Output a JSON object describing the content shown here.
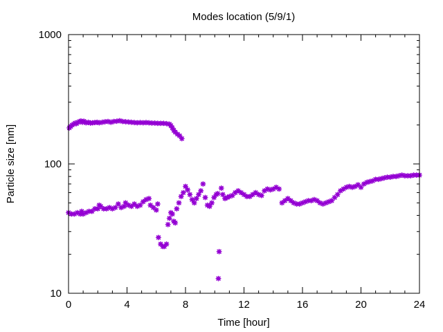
{
  "chart_data": {
    "type": "scatter",
    "title": "Modes location (5/9/1)",
    "xlabel": "Time [hour]",
    "ylabel": "Particle size [nm]",
    "xlim": [
      0,
      24
    ],
    "ylim": [
      10,
      1000
    ],
    "yscale": "log",
    "xticks": [
      0,
      4,
      8,
      12,
      16,
      20,
      24
    ],
    "xtick_labels": [
      "0",
      "4",
      "8",
      "12",
      "16",
      "20",
      "24"
    ],
    "yticks": [
      10,
      100,
      1000
    ],
    "ytick_labels": [
      "10",
      "100",
      "1000"
    ],
    "grid": false,
    "legend": "none",
    "marker_color": "#9400d3",
    "series": [
      {
        "points": [
          [
            0.05,
            190
          ],
          [
            0.15,
            195
          ],
          [
            0.25,
            200
          ],
          [
            0.35,
            203
          ],
          [
            0.45,
            207
          ],
          [
            0.55,
            205
          ],
          [
            0.65,
            210
          ],
          [
            0.75,
            213
          ],
          [
            0.85,
            215
          ],
          [
            0.95,
            210
          ],
          [
            1.05,
            214
          ],
          [
            1.2,
            208
          ],
          [
            1.35,
            210
          ],
          [
            1.5,
            207
          ],
          [
            1.65,
            208
          ],
          [
            1.8,
            209
          ],
          [
            1.95,
            210
          ],
          [
            2.1,
            208
          ],
          [
            2.3,
            210
          ],
          [
            2.5,
            212
          ],
          [
            2.7,
            213
          ],
          [
            2.9,
            210
          ],
          [
            3.1,
            213
          ],
          [
            3.3,
            214
          ],
          [
            3.5,
            216
          ],
          [
            3.7,
            213
          ],
          [
            3.9,
            212
          ],
          [
            4.1,
            211
          ],
          [
            4.3,
            210
          ],
          [
            4.5,
            209
          ],
          [
            4.7,
            208
          ],
          [
            4.9,
            209
          ],
          [
            5.1,
            208
          ],
          [
            5.3,
            209
          ],
          [
            5.5,
            208
          ],
          [
            5.7,
            207
          ],
          [
            5.9,
            207
          ],
          [
            6.1,
            206
          ],
          [
            6.3,
            206
          ],
          [
            6.5,
            206
          ],
          [
            6.7,
            205
          ],
          [
            6.9,
            203
          ],
          [
            7.0,
            198
          ],
          [
            7.1,
            190
          ],
          [
            7.2,
            182
          ],
          [
            7.3,
            176
          ],
          [
            7.45,
            170
          ],
          [
            7.6,
            165
          ],
          [
            7.75,
            157
          ]
        ]
      },
      {
        "points": [
          [
            0.0,
            42
          ],
          [
            0.2,
            41
          ],
          [
            0.4,
            41
          ],
          [
            0.6,
            42
          ],
          [
            0.8,
            41
          ],
          [
            0.9,
            43
          ],
          [
            1.0,
            41
          ],
          [
            1.2,
            42
          ],
          [
            1.4,
            43
          ],
          [
            1.6,
            43
          ],
          [
            1.8,
            45
          ],
          [
            2.0,
            45
          ],
          [
            2.1,
            48
          ],
          [
            2.2,
            47
          ],
          [
            2.4,
            45
          ],
          [
            2.6,
            45
          ],
          [
            2.8,
            46
          ],
          [
            3.0,
            45
          ],
          [
            3.2,
            46
          ],
          [
            3.4,
            49
          ],
          [
            3.6,
            46
          ],
          [
            3.8,
            47
          ],
          [
            3.9,
            50
          ],
          [
            4.1,
            48
          ],
          [
            4.3,
            47
          ],
          [
            4.5,
            49
          ],
          [
            4.7,
            47
          ],
          [
            4.9,
            48
          ],
          [
            5.1,
            51
          ],
          [
            5.3,
            53
          ],
          [
            5.5,
            54
          ],
          [
            5.6,
            48
          ],
          [
            5.8,
            46
          ],
          [
            6.0,
            44
          ],
          [
            6.1,
            49
          ],
          [
            6.15,
            27
          ],
          [
            6.3,
            24
          ],
          [
            6.45,
            23
          ],
          [
            6.55,
            23
          ],
          [
            6.7,
            24
          ],
          [
            6.8,
            34
          ],
          [
            6.9,
            38
          ],
          [
            7.0,
            42
          ],
          [
            7.1,
            41
          ],
          [
            7.2,
            36
          ],
          [
            7.3,
            35
          ],
          [
            7.4,
            45
          ],
          [
            7.55,
            50
          ],
          [
            7.7,
            56
          ],
          [
            7.85,
            60
          ],
          [
            8.0,
            67
          ],
          [
            8.15,
            63
          ],
          [
            8.3,
            58
          ],
          [
            8.45,
            53
          ],
          [
            8.6,
            50
          ],
          [
            8.75,
            54
          ],
          [
            8.9,
            58
          ],
          [
            9.05,
            62
          ],
          [
            9.2,
            70
          ],
          [
            9.35,
            55
          ],
          [
            9.5,
            48
          ],
          [
            9.65,
            47
          ],
          [
            9.8,
            50
          ],
          [
            9.95,
            55
          ],
          [
            10.1,
            58
          ],
          [
            10.2,
            59
          ],
          [
            10.25,
            13
          ],
          [
            10.3,
            21
          ],
          [
            10.45,
            65
          ],
          [
            10.55,
            58
          ],
          [
            10.7,
            54
          ],
          [
            10.85,
            55
          ],
          [
            11.0,
            56
          ],
          [
            11.2,
            57
          ],
          [
            11.4,
            60
          ],
          [
            11.6,
            62
          ],
          [
            11.8,
            60
          ],
          [
            12.0,
            58
          ],
          [
            12.2,
            56
          ],
          [
            12.4,
            56
          ],
          [
            12.6,
            58
          ],
          [
            12.8,
            60
          ],
          [
            13.0,
            58
          ],
          [
            13.2,
            57
          ],
          [
            13.4,
            62
          ],
          [
            13.6,
            64
          ],
          [
            13.8,
            63
          ],
          [
            14.0,
            64
          ],
          [
            14.2,
            66
          ],
          [
            14.4,
            64
          ],
          [
            14.6,
            50
          ],
          [
            14.8,
            52
          ],
          [
            15.0,
            54
          ],
          [
            15.2,
            52
          ],
          [
            15.4,
            50
          ],
          [
            15.6,
            49
          ],
          [
            15.8,
            49
          ],
          [
            16.0,
            50
          ],
          [
            16.2,
            51
          ],
          [
            16.4,
            52
          ],
          [
            16.6,
            52
          ],
          [
            16.8,
            53
          ],
          [
            17.0,
            52
          ],
          [
            17.2,
            50
          ],
          [
            17.4,
            49
          ],
          [
            17.6,
            50
          ],
          [
            17.8,
            51
          ],
          [
            18.0,
            52
          ],
          [
            18.2,
            55
          ],
          [
            18.4,
            58
          ],
          [
            18.6,
            62
          ],
          [
            18.8,
            64
          ],
          [
            19.0,
            66
          ],
          [
            19.2,
            67
          ],
          [
            19.4,
            66
          ],
          [
            19.6,
            67
          ],
          [
            19.8,
            69
          ],
          [
            20.0,
            66
          ],
          [
            20.2,
            70
          ],
          [
            20.4,
            72
          ],
          [
            20.6,
            73
          ],
          [
            20.8,
            74
          ],
          [
            21.0,
            76
          ],
          [
            21.2,
            76
          ],
          [
            21.4,
            77
          ],
          [
            21.6,
            78
          ],
          [
            21.8,
            79
          ],
          [
            22.0,
            79
          ],
          [
            22.2,
            80
          ],
          [
            22.4,
            80
          ],
          [
            22.6,
            81
          ],
          [
            22.8,
            82
          ],
          [
            23.0,
            81
          ],
          [
            23.2,
            81
          ],
          [
            23.4,
            81
          ],
          [
            23.6,
            82
          ],
          [
            23.8,
            82
          ],
          [
            24.0,
            82
          ]
        ]
      }
    ]
  }
}
